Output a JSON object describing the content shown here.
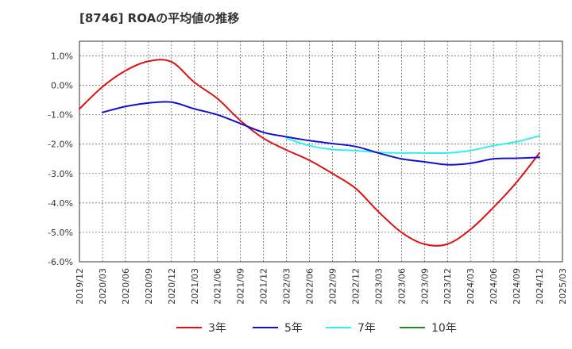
{
  "title": "[8746]  ROAの平均値の推移",
  "chart_data": {
    "type": "line",
    "title": "[8746]  ROAの平均値の推移",
    "xlabel": "",
    "ylabel": "",
    "ylim": [
      -6.0,
      1.5
    ],
    "yticks": [
      1.0,
      0.0,
      -1.0,
      -2.0,
      -3.0,
      -4.0,
      -5.0,
      -6.0
    ],
    "ytick_labels": [
      "1.0%",
      "0.0%",
      "-1.0%",
      "-2.0%",
      "-3.0%",
      "-4.0%",
      "-5.0%",
      "-6.0%"
    ],
    "xticks": [
      "2019/12",
      "2020/03",
      "2020/06",
      "2020/09",
      "2020/12",
      "2021/03",
      "2021/06",
      "2021/09",
      "2021/12",
      "2022/03",
      "2022/06",
      "2022/09",
      "2022/12",
      "2023/03",
      "2023/06",
      "2023/09",
      "2023/12",
      "2024/03",
      "2024/06",
      "2024/09",
      "2024/12",
      "2025/03"
    ],
    "grid": true,
    "legend_position": "bottom",
    "series": [
      {
        "name": "3年",
        "color": "#dd1111",
        "x": [
          "2019/12",
          "2020/03",
          "2020/06",
          "2020/09",
          "2020/12",
          "2021/03",
          "2021/06",
          "2021/09",
          "2021/12",
          "2022/03",
          "2022/06",
          "2022/09",
          "2022/12",
          "2023/03",
          "2023/06",
          "2023/09",
          "2023/12",
          "2024/03",
          "2024/06",
          "2024/09",
          "2024/12"
        ],
        "values": [
          -0.8,
          -0.05,
          0.5,
          0.82,
          0.8,
          0.1,
          -0.45,
          -1.2,
          -1.8,
          -2.2,
          -2.55,
          -3.0,
          -3.5,
          -4.3,
          -5.0,
          -5.4,
          -5.4,
          -4.9,
          -4.15,
          -3.3,
          -2.3
        ]
      },
      {
        "name": "5年",
        "color": "#1111cc",
        "x": [
          "2020/03",
          "2020/06",
          "2020/09",
          "2020/12",
          "2021/03",
          "2021/06",
          "2021/09",
          "2021/12",
          "2022/03",
          "2022/06",
          "2022/09",
          "2022/12",
          "2023/03",
          "2023/06",
          "2023/09",
          "2023/12",
          "2024/03",
          "2024/06",
          "2024/09",
          "2024/12"
        ],
        "values": [
          -0.92,
          -0.72,
          -0.6,
          -0.57,
          -0.8,
          -1.0,
          -1.3,
          -1.6,
          -1.75,
          -1.88,
          -1.98,
          -2.08,
          -2.3,
          -2.5,
          -2.6,
          -2.7,
          -2.65,
          -2.5,
          -2.48,
          -2.45
        ]
      },
      {
        "name": "7年",
        "color": "#33eeee",
        "x": [
          "2022/03",
          "2022/06",
          "2022/09",
          "2022/12",
          "2023/03",
          "2023/06",
          "2023/09",
          "2023/12",
          "2024/03",
          "2024/06",
          "2024/09",
          "2024/12"
        ],
        "values": [
          -1.8,
          -2.05,
          -2.18,
          -2.22,
          -2.28,
          -2.3,
          -2.3,
          -2.3,
          -2.22,
          -2.05,
          -1.92,
          -1.72
        ]
      },
      {
        "name": "10年",
        "color": "#228822",
        "x": [],
        "values": []
      }
    ]
  }
}
